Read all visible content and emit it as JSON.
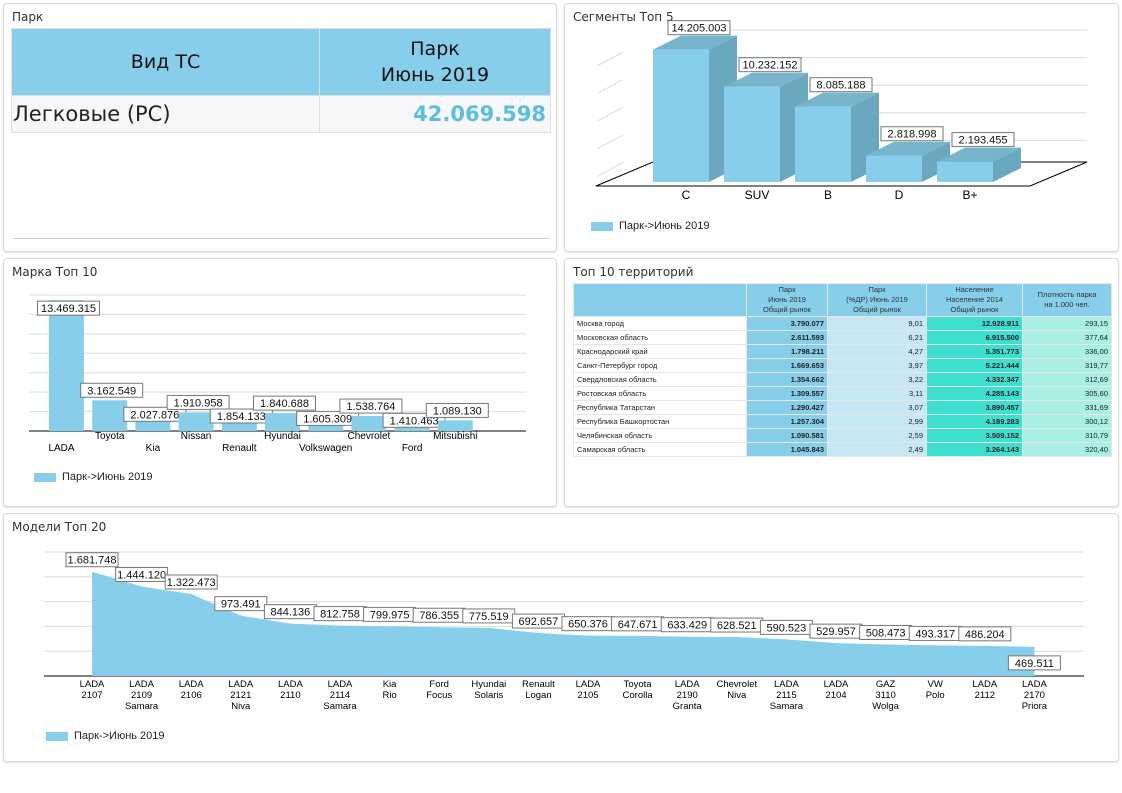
{
  "colors": {
    "bar": "#87ceea",
    "bar_side": "#6aa8c0",
    "bar_top": "#77b5cc",
    "accent_value": "#5bbde2",
    "density_cell": "#3ddfcf"
  },
  "park": {
    "title": "Парк",
    "headers": [
      "Вид ТС",
      "Парк\nИюнь 2019"
    ],
    "header_col2_line1": "Парк",
    "header_col2_line2": "Июнь 2019",
    "rows": [
      {
        "type": "Легковые (PC)",
        "value": "42.069.598"
      }
    ]
  },
  "segments": {
    "title": "Сегменты Топ 5",
    "legend": "Парк->Июнь 2019"
  },
  "brands": {
    "title": "Марка Топ 10",
    "legend": "Парк->Июнь 2019"
  },
  "territories": {
    "title": "Топ 10 территорий",
    "headers": [
      "",
      [
        "Парк",
        "Июнь 2019",
        "Общий рынок"
      ],
      [
        "Парк",
        "(%ДР) Июнь 2019",
        "Общий рынок"
      ],
      [
        "Население",
        "Население 2014",
        "Общий рынок"
      ],
      [
        "Плотность парка",
        "на 1.000 чел."
      ]
    ],
    "rows": [
      [
        "Москва город",
        "3.790.077",
        "9,01",
        "12.928.911",
        "293,15"
      ],
      [
        "Московская область",
        "2.611.593",
        "6,21",
        "6.915.500",
        "377,64"
      ],
      [
        "Краснодарский край",
        "1.798.211",
        "4,27",
        "5.351.773",
        "336,00"
      ],
      [
        "Санкт-Петербург город",
        "1.669.653",
        "3,97",
        "5.221.444",
        "319,77"
      ],
      [
        "Свердловская область",
        "1.354.662",
        "3,22",
        "4.332.347",
        "312,69"
      ],
      [
        "Ростовская область",
        "1.309.557",
        "3,11",
        "4.285.143",
        "305,60"
      ],
      [
        "Республика Татарстан",
        "1.290.427",
        "3,07",
        "3.890.457",
        "331,69"
      ],
      [
        "Республика Башкортостан",
        "1.257.304",
        "2,99",
        "4.189.283",
        "300,12"
      ],
      [
        "Челябинская область",
        "1.090.581",
        "2,59",
        "3.509.152",
        "310,79"
      ],
      [
        "Самарская область",
        "1.045.843",
        "2,49",
        "3.264.143",
        "320,40"
      ]
    ]
  },
  "models": {
    "title": "Модели Топ 20",
    "legend": "Парк->Июнь 2019"
  },
  "chart_data": [
    {
      "id": "segments",
      "type": "bar",
      "style": "3d",
      "title": "Сегменты Топ 5",
      "categories": [
        "C",
        "SUV",
        "B",
        "D",
        "B+"
      ],
      "values": [
        14205003,
        10232152,
        8085188,
        2818998,
        2193455
      ],
      "labels": [
        "14.205.003",
        "10.232.152",
        "8.085.188",
        "2.818.998",
        "2.193.455"
      ],
      "legend": [
        "Парк->Июнь 2019"
      ],
      "legend_position": "bottom-left",
      "grid": true,
      "ylim": [
        0,
        16000000
      ]
    },
    {
      "id": "brands",
      "type": "bar",
      "title": "Марка Топ 10",
      "categories": [
        "LADA",
        "Toyota",
        "Kia",
        "Nissan",
        "Renault",
        "Hyundai",
        "Volkswagen",
        "Chevrolet",
        "Ford",
        "Mitsubishi"
      ],
      "values": [
        13469315,
        3162549,
        2027876,
        1910958,
        1854133,
        1840688,
        1605309,
        1538764,
        1410463,
        1089130
      ],
      "labels": [
        "13.469.315",
        "3.162.549",
        "2.027.876",
        "1.910.958",
        "1.854.133",
        "1.840.688",
        "1.605.309",
        "1.538.764",
        "1.410.463",
        "1.089.130"
      ],
      "legend": [
        "Парк->Июнь 2019"
      ],
      "legend_position": "bottom-left",
      "grid": true,
      "ylim": [
        0,
        14000000
      ]
    },
    {
      "id": "models",
      "type": "area",
      "title": "Модели Топ 20",
      "categories": [
        [
          "LADA",
          "2107"
        ],
        [
          "LADA",
          "2109",
          "Samara"
        ],
        [
          "LADA",
          "2106"
        ],
        [
          "LADA",
          "2121",
          "Niva"
        ],
        [
          "LADA",
          "2110"
        ],
        [
          "LADA",
          "2114",
          "Samara"
        ],
        [
          "Kia",
          "Rio"
        ],
        [
          "Ford",
          "Focus"
        ],
        [
          "Hyundai",
          "Solaris"
        ],
        [
          "Renault",
          "Logan"
        ],
        [
          "LADA",
          "2105"
        ],
        [
          "Toyota",
          "Corolla"
        ],
        [
          "LADA",
          "2190",
          "Granta"
        ],
        [
          "Chevrolet",
          "Niva"
        ],
        [
          "LADA",
          "2115",
          "Samara"
        ],
        [
          "LADA",
          "2104"
        ],
        [
          "GAZ",
          "3110",
          "Wolga"
        ],
        [
          "VW",
          "Polo"
        ],
        [
          "LADA",
          "2112"
        ],
        [
          "LADA",
          "2170",
          "Priora"
        ]
      ],
      "values": [
        1681748,
        1444120,
        1322473,
        973491,
        844136,
        812758,
        799975,
        786355,
        775519,
        692657,
        650376,
        647671,
        633429,
        628521,
        590523,
        529957,
        508473,
        493317,
        486204,
        469511
      ],
      "labels": [
        "1.681.748",
        "1.444.120",
        "1.322.473",
        "973.491",
        "844.136",
        "812.758",
        "799.975",
        "786.355",
        "775.519",
        "692.657",
        "650.376",
        "647.671",
        "633.429",
        "628.521",
        "590.523",
        "529.957",
        "508.473",
        "493.317",
        "486.204",
        "469.511"
      ],
      "legend": [
        "Парк->Июнь 2019"
      ],
      "legend_position": "bottom-left",
      "grid": true,
      "ylim": [
        0,
        2000000
      ]
    }
  ]
}
